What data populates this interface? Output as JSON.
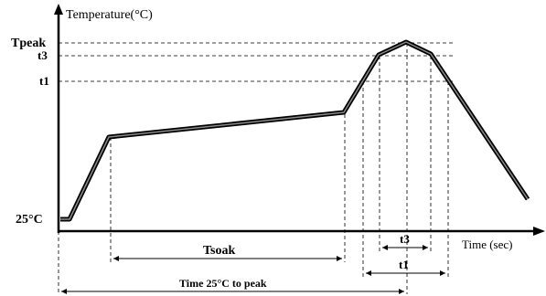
{
  "axes": {
    "y_label": "Temperature(°C)",
    "x_label": "Time (sec)"
  },
  "levels": {
    "tpeak": "Tpeak",
    "t3": "t3",
    "t1": "t1",
    "ambient": "25°C"
  },
  "spans": {
    "tsoak": "Tsoak",
    "t3_span": "t3",
    "t1_span": "t1",
    "time_to_peak": "Time 25°C to peak"
  }
}
